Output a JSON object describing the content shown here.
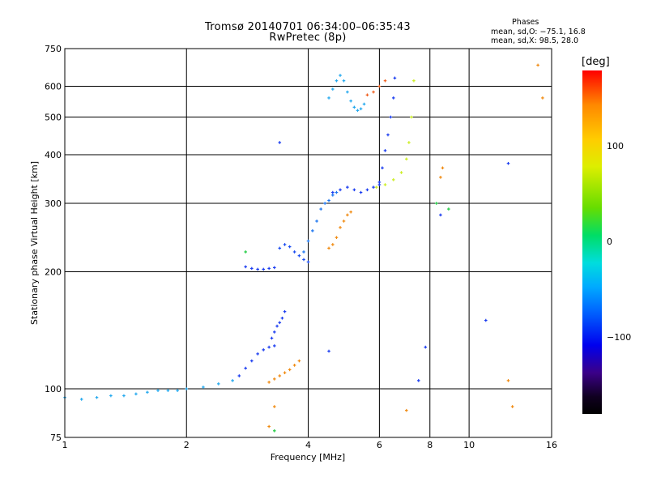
{
  "header": {
    "title_line1": "Tromsø 20140701 06:34:00–06:35:43",
    "title_line2": "RwPretec (8p)",
    "phase_label": "Phases",
    "phase_o": "mean, sd,O: −75.1, 16.8",
    "phase_x": "mean, sd,X: 98.5, 28.0"
  },
  "colorbar": {
    "unit": "[deg]",
    "ticks": [
      {
        "label": "100",
        "value": 100
      },
      {
        "label": "0",
        "value": 0
      },
      {
        "label": "−100",
        "value": -100
      }
    ],
    "range": [
      -180,
      180
    ]
  },
  "chart_data": {
    "type": "scatter",
    "title": "Tromsø 20140701 06:34:00–06:35:43",
    "subtitle": "RwPretec (8p)",
    "xlabel": "Frequency [MHz]",
    "ylabel": "Stationary phase Virtual Height [km]",
    "xscale": "log",
    "yscale": "log",
    "xlim": [
      1,
      16
    ],
    "ylim": [
      75,
      750
    ],
    "grid": true,
    "x_ticks": [
      1,
      2,
      4,
      6,
      8,
      10,
      16
    ],
    "x_tick_labels": [
      "1",
      "2",
      "4",
      "6",
      "8",
      "10",
      "16"
    ],
    "y_ticks": [
      75,
      100,
      200,
      300,
      400,
      500,
      600,
      750
    ],
    "y_tick_labels": [
      "75",
      "100",
      "200",
      "300",
      "400",
      "500",
      "600",
      "750"
    ],
    "color_encoding": "phase [deg]",
    "series": [
      {
        "color": "#22a8ee",
        "phase": -40,
        "x": [
          1.0,
          1.1,
          1.2,
          1.3,
          1.4,
          1.5,
          1.6,
          1.7,
          1.8,
          1.9,
          2.0,
          2.2,
          2.4,
          2.6
        ],
        "y": [
          95,
          94,
          95,
          96,
          96,
          97,
          98,
          99,
          99,
          99,
          100,
          101,
          103,
          105
        ]
      },
      {
        "color": "#1a3cf0",
        "phase": -90,
        "x": [
          2.7,
          2.8,
          2.9,
          3.0,
          3.1,
          3.2,
          3.3
        ],
        "y": [
          108,
          113,
          118,
          123,
          126,
          128,
          129
        ]
      },
      {
        "color": "#1a3cf0",
        "phase": -90,
        "x": [
          3.25,
          3.3,
          3.35,
          3.4,
          3.45,
          3.5
        ],
        "y": [
          135,
          140,
          145,
          148,
          152,
          158
        ]
      },
      {
        "color": "#f08a10",
        "phase": 130,
        "x": [
          3.2,
          3.3,
          3.4,
          3.5,
          3.6,
          3.7,
          3.8
        ],
        "y": [
          104,
          106,
          108,
          110,
          112,
          115,
          118
        ]
      },
      {
        "color": "#1a3cf0",
        "phase": -90,
        "x": [
          2.8,
          2.9,
          3.0,
          3.1,
          3.2,
          3.3
        ],
        "y": [
          206,
          204,
          203,
          203,
          204,
          205
        ]
      },
      {
        "color": "#1a4cf0",
        "phase": -85,
        "x": [
          3.4,
          3.5,
          3.6,
          3.7,
          3.8,
          3.9,
          4.0
        ],
        "y": [
          230,
          235,
          232,
          225,
          220,
          215,
          212
        ]
      },
      {
        "color": "#1a74f0",
        "phase": -75,
        "x": [
          3.9,
          4.0,
          4.1,
          4.2,
          4.3,
          4.4,
          4.5,
          4.6,
          4.7
        ],
        "y": [
          225,
          240,
          255,
          270,
          290,
          300,
          305,
          315,
          320
        ]
      },
      {
        "color": "#1a3cf0",
        "phase": -90,
        "x": [
          4.6,
          4.8,
          5.0,
          5.2,
          5.4,
          5.6,
          5.8,
          6.0
        ],
        "y": [
          320,
          325,
          330,
          325,
          320,
          325,
          330,
          335
        ]
      },
      {
        "color": "#1a3cf0",
        "phase": -90,
        "x": [
          6.0,
          6.1,
          6.2,
          6.3,
          6.4,
          6.5,
          6.55
        ],
        "y": [
          340,
          370,
          410,
          450,
          500,
          560,
          630
        ]
      },
      {
        "color": "#f08a10",
        "phase": 130,
        "x": [
          4.5,
          4.6,
          4.7,
          4.8,
          4.9,
          5.0,
          5.1
        ],
        "y": [
          230,
          235,
          245,
          260,
          270,
          280,
          285
        ]
      },
      {
        "color": "#ccee22",
        "phase": 80,
        "x": [
          5.9,
          6.2,
          6.5,
          6.8,
          7.0,
          7.1,
          7.2,
          7.3
        ],
        "y": [
          330,
          335,
          345,
          360,
          390,
          430,
          500,
          620
        ]
      },
      {
        "color": "#22a8ee",
        "phase": -40,
        "x": [
          4.5,
          4.6,
          4.7,
          4.8,
          4.9,
          5.0,
          5.1,
          5.2,
          5.3,
          5.4,
          5.5
        ],
        "y": [
          560,
          590,
          620,
          640,
          620,
          580,
          550,
          530,
          520,
          525,
          540
        ]
      },
      {
        "color": "#f06020",
        "phase": 150,
        "x": [
          5.6,
          5.8,
          6.0,
          6.2
        ],
        "y": [
          570,
          580,
          600,
          620
        ]
      },
      {
        "color": "#f08a10",
        "phase": 130,
        "x": [
          8.5,
          8.6,
          12.5,
          12.8,
          14.8,
          15.2,
          3.3,
          3.2,
          7.0
        ],
        "y": [
          350,
          370,
          105,
          90,
          680,
          560,
          90,
          80,
          88
        ]
      },
      {
        "color": "#1a3cf0",
        "phase": -90,
        "x": [
          3.4,
          4.5,
          11.0,
          12.5,
          8.5,
          7.8,
          7.5
        ],
        "y": [
          430,
          125,
          150,
          380,
          280,
          128,
          105
        ]
      },
      {
        "color": "#22cc44",
        "phase": 10,
        "x": [
          2.8,
          8.3,
          8.9,
          3.3
        ],
        "y": [
          225,
          300,
          290,
          78
        ]
      }
    ]
  }
}
